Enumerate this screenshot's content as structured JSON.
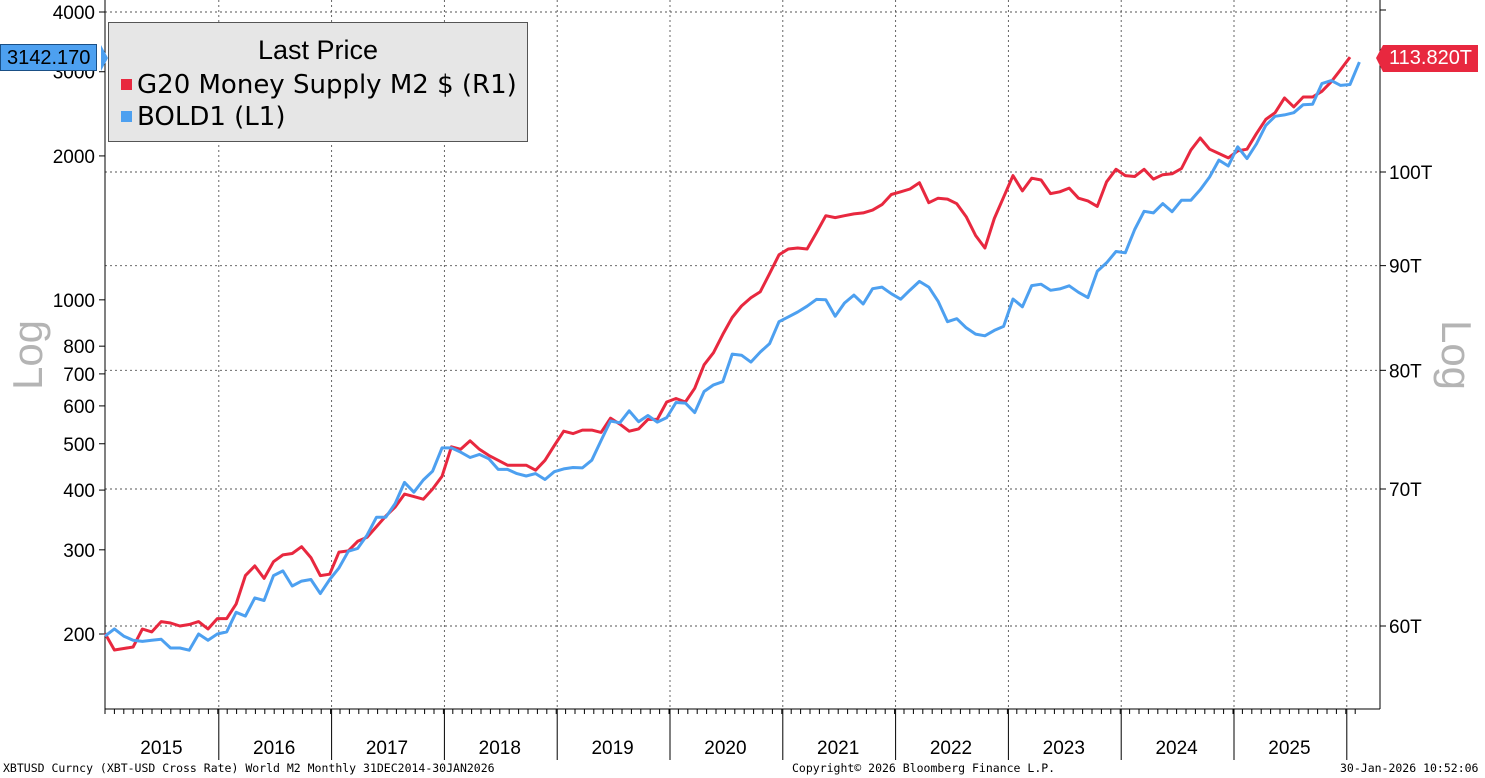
{
  "chart_data": {
    "type": "line",
    "legend": {
      "title": "Last Price",
      "placement": "top-left"
    },
    "x": {
      "start": "2014-12-31",
      "end": "2026-01-30",
      "year_labels": [
        "2015",
        "2016",
        "2017",
        "2018",
        "2019",
        "2020",
        "2021",
        "2022",
        "2023",
        "2024",
        "2025"
      ]
    },
    "left_axis": {
      "title": "Log",
      "scale": "log",
      "range": [
        160,
        4200
      ],
      "ticks": [
        4000,
        3000,
        2000,
        1000,
        800,
        700,
        600,
        500,
        400,
        300,
        200
      ],
      "tick_labels": [
        "4000",
        "3000",
        "2000",
        "1000",
        "800",
        "700",
        "600",
        "500",
        "400",
        "300",
        "200"
      ]
    },
    "right_axis": {
      "title": "Log",
      "scale": "log",
      "range": [
        54,
        120
      ],
      "ticks": [
        100,
        90,
        80,
        70,
        60
      ],
      "tick_labels": [
        "100T",
        "90T",
        "80T",
        "70T",
        "60T"
      ]
    },
    "grid": true,
    "series": [
      {
        "name": "G20 Money Supply M2 $  (R1)",
        "axis": "right",
        "color": "#e8283f",
        "last_value_label": "113.820T",
        "values": [
          59.5,
          58.4,
          58.5,
          58.6,
          59.8,
          59.6,
          60.3,
          60.2,
          60.0,
          60.1,
          60.3,
          59.8,
          60.5,
          60.5,
          61.5,
          63.5,
          64.2,
          63.3,
          64.5,
          65.0,
          65.1,
          65.6,
          64.8,
          63.5,
          63.6,
          65.2,
          65.3,
          66.0,
          66.3,
          67.1,
          67.9,
          68.6,
          69.6,
          69.4,
          69.2,
          70.0,
          71.0,
          73.4,
          73.2,
          73.9,
          73.2,
          72.7,
          72.3,
          71.9,
          71.9,
          71.9,
          71.5,
          72.3,
          73.5,
          74.7,
          74.5,
          74.8,
          74.8,
          74.6,
          75.8,
          75.3,
          74.7,
          74.9,
          75.7,
          75.7,
          77.2,
          77.5,
          77.2,
          78.4,
          80.5,
          81.6,
          83.3,
          84.9,
          86.0,
          86.8,
          87.4,
          89.2,
          91.1,
          91.7,
          91.8,
          91.7,
          93.4,
          95.2,
          95.0,
          95.2,
          95.4,
          95.5,
          95.8,
          96.4,
          97.5,
          97.8,
          98.1,
          98.8,
          96.6,
          97.1,
          97.0,
          96.5,
          95.1,
          93.1,
          91.8,
          94.9,
          97.2,
          99.6,
          97.9,
          99.3,
          99.1,
          97.6,
          97.8,
          98.2,
          97.1,
          96.8,
          96.2,
          98.9,
          100.3,
          99.6,
          99.5,
          100.3,
          99.2,
          99.7,
          99.8,
          100.4,
          102.5,
          103.9,
          102.6,
          102.1,
          101.6,
          102.4,
          102.6,
          104.4,
          106.1,
          106.9,
          108.7,
          107.6,
          108.8,
          108.8,
          109.5,
          110.7,
          112.2,
          113.8
        ]
      },
      {
        "name": "BOLD1  (L1)",
        "axis": "left",
        "color": "#4da0f0",
        "last_value_label": "3142.170",
        "values": [
          198,
          205,
          198,
          194,
          193,
          194,
          195,
          187,
          187,
          185,
          200,
          194,
          200,
          202,
          222,
          218,
          238,
          235,
          265,
          271,
          252,
          258,
          260,
          243,
          260,
          275,
          298,
          302,
          322,
          351,
          351,
          375,
          415,
          396,
          420,
          438,
          490,
          490,
          480,
          468,
          475,
          465,
          442,
          442,
          433,
          428,
          433,
          421,
          437,
          443,
          446,
          445,
          462,
          508,
          558,
          553,
          586,
          556,
          573,
          555,
          567,
          610,
          608,
          581,
          643,
          664,
          674,
          770,
          766,
          741,
          778,
          810,
          900,
          921,
          943,
          970,
          1002,
          1000,
          924,
          985,
          1023,
          980,
          1055,
          1063,
          1030,
          1003,
          1048,
          1093,
          1063,
          993,
          900,
          913,
          874,
          848,
          841,
          863,
          880,
          1004,
          967,
          1071,
          1078,
          1047,
          1054,
          1070,
          1037,
          1011,
          1148,
          1195,
          1262,
          1254,
          1403,
          1532,
          1520,
          1590,
          1529,
          1616,
          1615,
          1699,
          1807,
          1960,
          1905,
          2090,
          1974,
          2118,
          2317,
          2420,
          2437,
          2463,
          2560,
          2565,
          2833,
          2874,
          2809,
          2821,
          3142.17
        ]
      }
    ]
  },
  "footer": {
    "left": "XBTUSD Curncy (XBT-USD Cross Rate) World M2 Monthly 31DEC2014-30JAN2026",
    "center": "Copyright© 2026 Bloomberg Finance L.P.",
    "right": "30-Jan-2026 10:52:06"
  }
}
